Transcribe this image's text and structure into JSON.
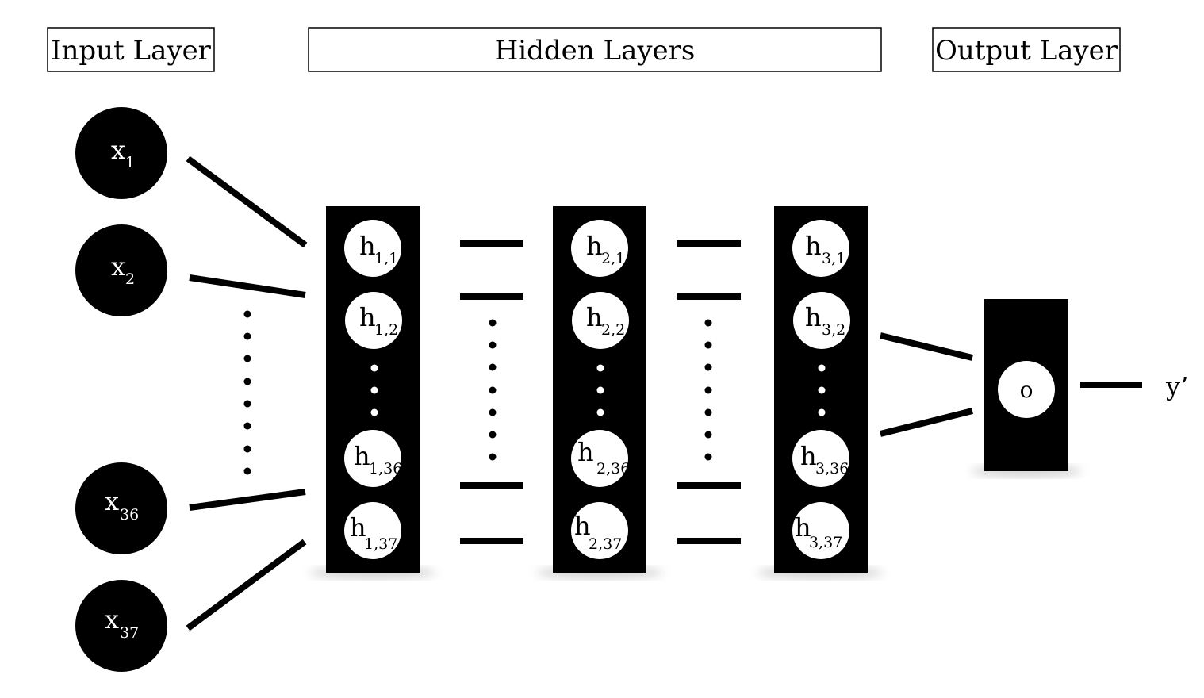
{
  "headers": {
    "input": "Input Layer",
    "hidden": "Hidden Layers",
    "output": "Output Layer"
  },
  "input_nodes": [
    {
      "base": "x",
      "sub": "1"
    },
    {
      "base": "x",
      "sub": "2"
    },
    {
      "base": "x",
      "sub": "36"
    },
    {
      "base": "x",
      "sub": "37"
    }
  ],
  "hidden_layers": [
    {
      "nodes": [
        {
          "base": "h",
          "sub": "1,1"
        },
        {
          "base": "h",
          "sub": "1,2"
        },
        {
          "base": "h",
          "sub": "1,36"
        },
        {
          "base": "h",
          "sub": "1,37"
        }
      ]
    },
    {
      "nodes": [
        {
          "base": "h",
          "sub": "2,1"
        },
        {
          "base": "h",
          "sub": "2,2"
        },
        {
          "base": "h",
          "sub": "2,36"
        },
        {
          "base": "h",
          "sub": "2,37"
        }
      ]
    },
    {
      "nodes": [
        {
          "base": "h",
          "sub": "3,1"
        },
        {
          "base": "h",
          "sub": "3,2"
        },
        {
          "base": "h",
          "sub": "3,36"
        },
        {
          "base": "h",
          "sub": "3,37"
        }
      ]
    }
  ],
  "output_node": {
    "label": "o"
  },
  "output_label": "y’"
}
